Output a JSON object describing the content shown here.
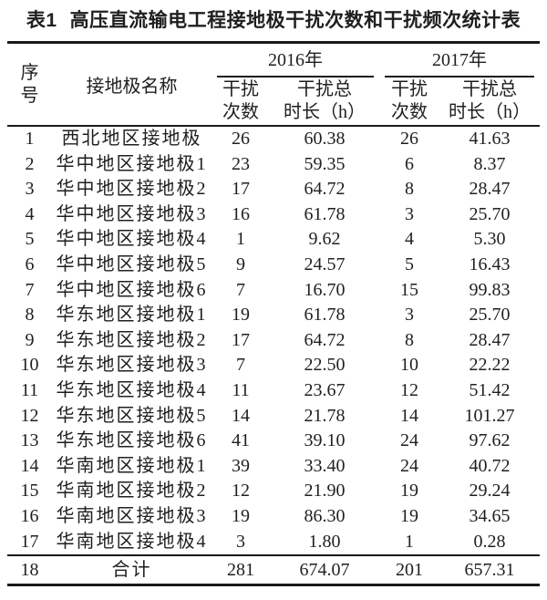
{
  "page": {
    "background": "#ffffff",
    "text_color": "#1f1f1f",
    "rule_color": "#1a1a1a"
  },
  "caption": {
    "label": "表1",
    "title": "高压直流输电工程接地极干扰次数和干扰频次统计表"
  },
  "table": {
    "header": {
      "serial_lines": [
        "序",
        "号"
      ],
      "name": "接地极名称",
      "year_2016": "2016年",
      "year_2017": "2017年",
      "count_lines": [
        "干扰",
        "次数"
      ],
      "duration_lines": [
        "干扰总",
        "时长（h）"
      ]
    },
    "rows": [
      [
        "1",
        "西北地区接地极",
        "26",
        "60.38",
        "26",
        "41.63"
      ],
      [
        "2",
        "华中地区接地极1",
        "23",
        "59.35",
        "6",
        "8.37"
      ],
      [
        "3",
        "华中地区接地极2",
        "17",
        "64.72",
        "8",
        "28.47"
      ],
      [
        "4",
        "华中地区接地极3",
        "16",
        "61.78",
        "3",
        "25.70"
      ],
      [
        "5",
        "华中地区接地极4",
        "1",
        "9.62",
        "4",
        "5.30"
      ],
      [
        "6",
        "华中地区接地极5",
        "9",
        "24.57",
        "5",
        "16.43"
      ],
      [
        "7",
        "华中地区接地极6",
        "7",
        "16.70",
        "15",
        "99.83"
      ],
      [
        "8",
        "华东地区接地极1",
        "19",
        "61.78",
        "3",
        "25.70"
      ],
      [
        "9",
        "华东地区接地极2",
        "17",
        "64.72",
        "8",
        "28.47"
      ],
      [
        "10",
        "华东地区接地极3",
        "7",
        "22.50",
        "10",
        "22.22"
      ],
      [
        "11",
        "华东地区接地极4",
        "11",
        "23.67",
        "12",
        "51.42"
      ],
      [
        "12",
        "华东地区接地极5",
        "14",
        "21.78",
        "14",
        "101.27"
      ],
      [
        "13",
        "华东地区接地极6",
        "41",
        "39.10",
        "24",
        "97.62"
      ],
      [
        "14",
        "华南地区接地极1",
        "39",
        "33.40",
        "24",
        "40.72"
      ],
      [
        "15",
        "华南地区接地极2",
        "12",
        "21.90",
        "19",
        "29.24"
      ],
      [
        "16",
        "华南地区接地极3",
        "19",
        "86.30",
        "19",
        "34.65"
      ],
      [
        "17",
        "华南地区接地极4",
        "3",
        "1.80",
        "1",
        "0.28"
      ]
    ],
    "total": [
      "18",
      "合计",
      "281",
      "674.07",
      "201",
      "657.31"
    ]
  }
}
